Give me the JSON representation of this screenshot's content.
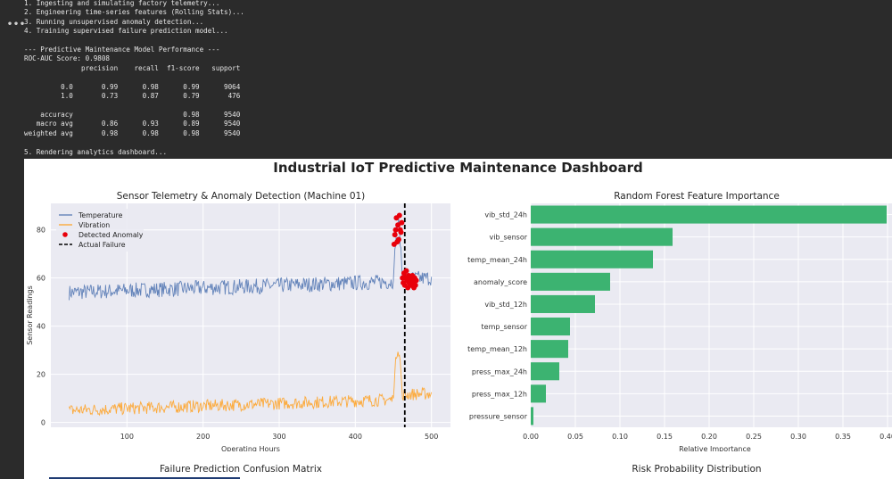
{
  "console": {
    "lines": [
      "1. Ingesting and simulating factory telemetry...",
      "2. Engineering time-series features (Rolling Stats)...",
      "3. Running unsupervised anomaly detection...",
      "4. Training supervised failure prediction model...",
      "",
      "--- Predictive Maintenance Model Performance ---",
      "ROC-AUC Score: 0.9808",
      "              precision    recall  f1-score   support",
      "",
      "         0.0       0.99      0.98      0.99      9064",
      "         1.0       0.73      0.87      0.79       476",
      "",
      "    accuracy                           0.98      9540",
      "   macro avg       0.86      0.93      0.89      9540",
      "weighted avg       0.98      0.98      0.98      9540",
      "",
      "5. Rendering analytics dashboard..."
    ],
    "gutter_icon": "more-horizontal-icon"
  },
  "dashboard": {
    "title": "Industrial IoT Predictive Maintenance Dashboard",
    "bottom_left_title": "Failure Prediction Confusion Matrix",
    "bottom_right_title": "Risk Probability Distribution"
  },
  "chart_data": [
    {
      "type": "line",
      "title": "Sensor Telemetry & Anomaly Detection (Machine 01)",
      "xlabel": "Operating Hours",
      "ylabel": "Sensor Readings",
      "xlim": [
        0,
        525
      ],
      "ylim": [
        -2,
        91
      ],
      "xticks": [
        100,
        200,
        300,
        400,
        500
      ],
      "yticks": [
        0,
        20,
        40,
        60,
        80
      ],
      "grid": true,
      "legend_position": "top-left",
      "colors": {
        "temperature": "#4c72b0",
        "vibration": "#ff9f1c",
        "anomaly": "#e8000b",
        "failure": "#000000"
      },
      "series": [
        {
          "name": "Temperature",
          "x_range": [
            24,
            500
          ],
          "baseline_start": 54,
          "baseline_end": 59,
          "spike": {
            "x": [
              450,
              462
            ],
            "y": 86
          }
        },
        {
          "name": "Vibration",
          "x_range": [
            24,
            500
          ],
          "baseline_start": 5,
          "baseline_end": 10,
          "spike": {
            "x": [
              450,
              462
            ],
            "y": 34
          }
        }
      ],
      "anomalies": {
        "name": "Detected Anomaly",
        "x": [
          451,
          452,
          453,
          454,
          455,
          456,
          457,
          458,
          459,
          460,
          461,
          462,
          463,
          464,
          465,
          466,
          467,
          468,
          469,
          470,
          471,
          472,
          473,
          474,
          475,
          476,
          477,
          478,
          479,
          480
        ],
        "y": [
          74,
          78,
          80,
          85,
          75,
          82,
          76,
          86,
          80,
          79,
          83,
          60,
          58,
          62,
          57,
          60,
          63,
          59,
          56,
          61,
          58,
          60,
          57,
          59,
          61,
          58,
          56,
          60,
          57,
          59
        ]
      },
      "failure": {
        "name": "Actual Failure",
        "x": 465
      }
    },
    {
      "type": "bar",
      "orientation": "horizontal",
      "title": "Random Forest Feature Importance",
      "xlabel": "Relative Importance",
      "ylabel": "",
      "xlim": [
        0,
        0.413
      ],
      "xticks": [
        0.0,
        0.05,
        0.1,
        0.15,
        0.2,
        0.25,
        0.3,
        0.35,
        0.4
      ],
      "grid": true,
      "bar_color": "#3cb371",
      "categories": [
        "vib_std_24h",
        "vib_sensor",
        "temp_mean_24h",
        "anomaly_score",
        "vib_std_12h",
        "temp_sensor",
        "temp_mean_12h",
        "press_max_24h",
        "press_max_12h",
        "pressure_sensor"
      ],
      "values": [
        0.399,
        0.159,
        0.137,
        0.089,
        0.072,
        0.044,
        0.042,
        0.032,
        0.017,
        0.003
      ]
    }
  ]
}
